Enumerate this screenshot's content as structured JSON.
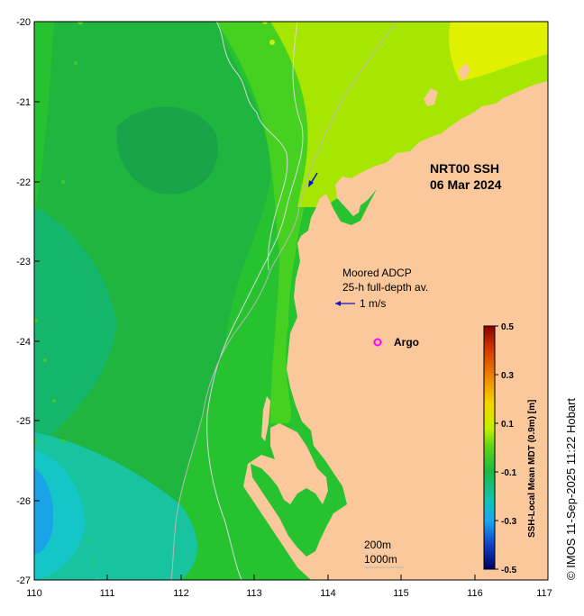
{
  "map": {
    "title_line1": "NRT00 SSH",
    "title_line2": "06 Mar 2024",
    "adcp_line1": "Moored ADCP",
    "adcp_line2": "25-h full-depth av.",
    "adcp_scale": "1 m/s",
    "argo_label": "Argo",
    "isobath_200": "200m",
    "isobath_1000": "1000m",
    "credit": "© IMOS 11-Sep-2025 11:22 Hobart",
    "colorbar_title": "SSH-Local Mean MDT (0.9m) [m]",
    "colorbar_ticks": [
      "0.5",
      "0.3",
      "0.1",
      "-0.1",
      "-0.3",
      "-0.5"
    ],
    "x_ticks": [
      "110",
      "111",
      "112",
      "113",
      "114",
      "115",
      "116",
      "117"
    ],
    "y_ticks": [
      "-20",
      "-21",
      "-22",
      "-23",
      "-24",
      "-25",
      "-26",
      "-27"
    ],
    "colors": {
      "land": "#fbc89b",
      "ocean_base": "#27c230",
      "argo": "#ff00ff",
      "arrow": "#1010c8"
    }
  }
}
